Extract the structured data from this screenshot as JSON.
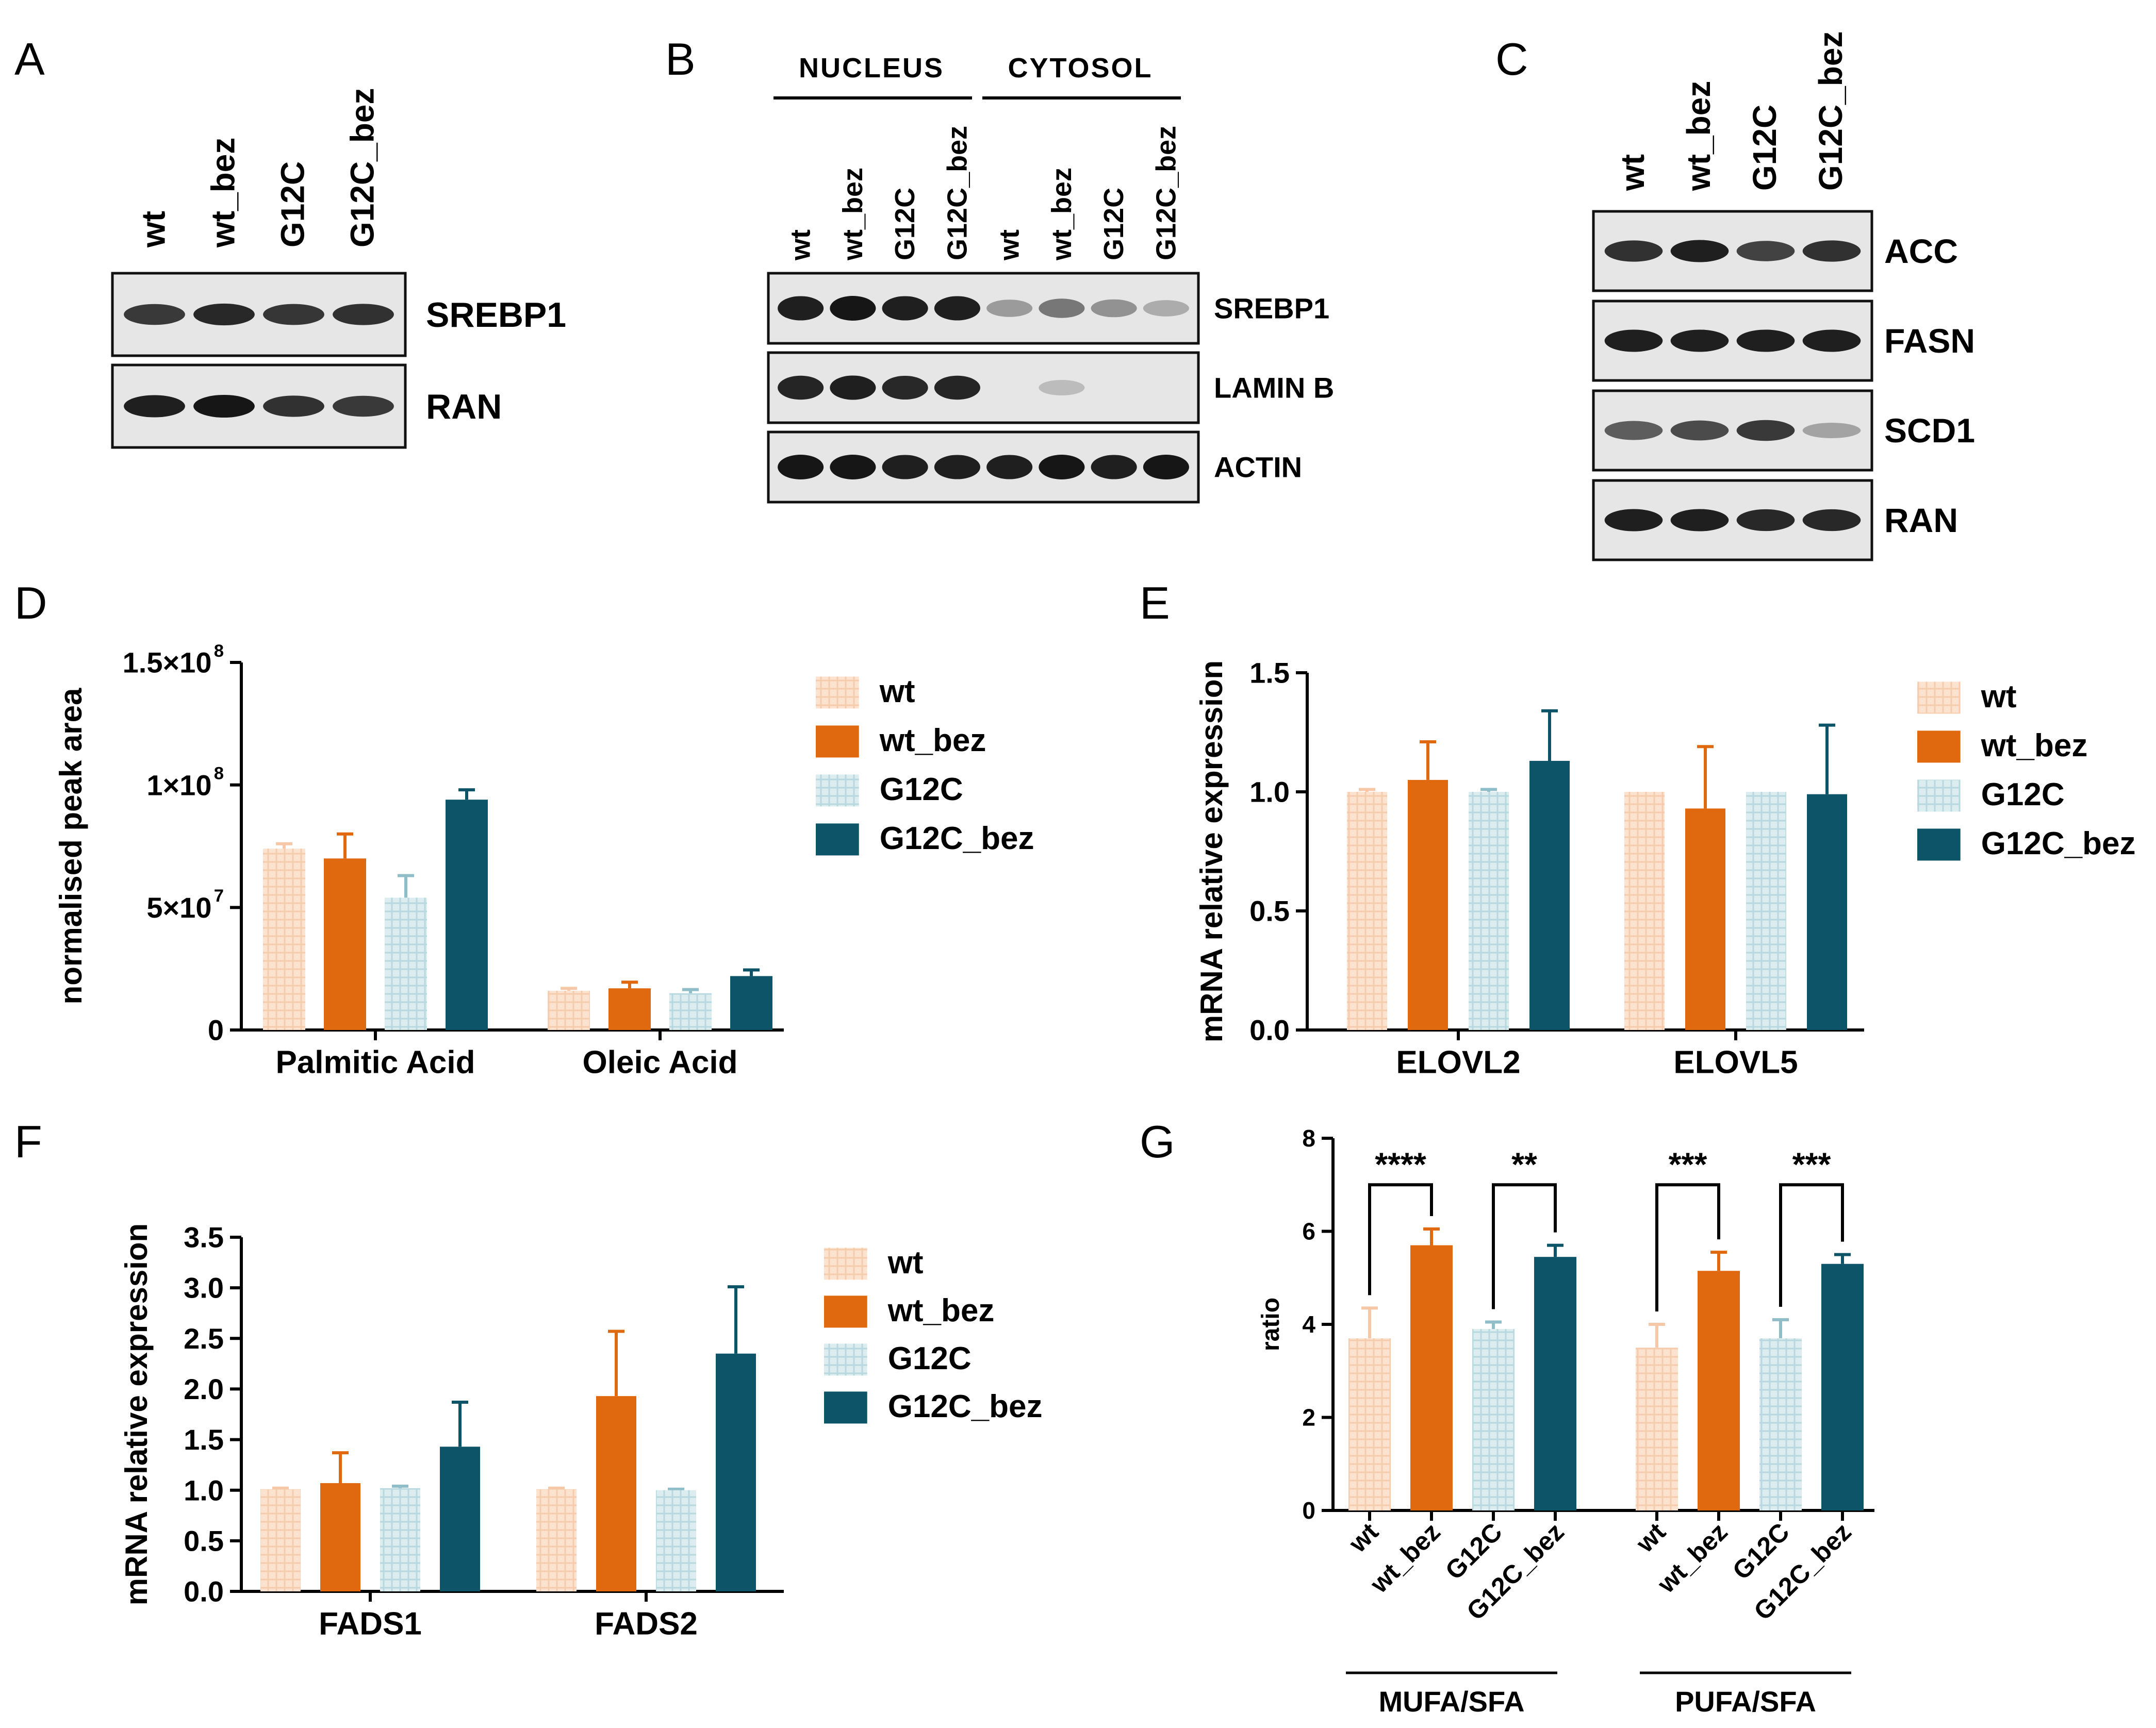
{
  "colors": {
    "wt": "#f6c8a8",
    "wt_bez": "#e0680f",
    "G12C": "#b4d6dd",
    "G12C_bez": "#0e5468",
    "blot_bg": "#e6e6e6",
    "band": "#161616"
  },
  "panels": {
    "A": {
      "letter": "A",
      "lanes": [
        "wt",
        "wt_bez",
        "G12C",
        "G12C_bez"
      ],
      "blots": [
        {
          "label": "SREBP1",
          "intensities": [
            0.8,
            0.9,
            0.82,
            0.85
          ]
        },
        {
          "label": "RAN",
          "intensities": [
            0.95,
            1.0,
            0.85,
            0.8
          ]
        }
      ]
    },
    "B": {
      "letter": "B",
      "groups": [
        "NUCLEUS",
        "CYTOSOL"
      ],
      "lanes": [
        "wt",
        "wt_bez",
        "G12C",
        "G12C_bez",
        "wt",
        "wt_bez",
        "G12C",
        "G12C_bez"
      ],
      "blots": [
        {
          "label": "SREBP1",
          "intensities": [
            0.95,
            1.0,
            0.95,
            0.95,
            0.25,
            0.45,
            0.3,
            0.15
          ]
        },
        {
          "label": "LAMIN B",
          "intensities": [
            0.92,
            0.95,
            0.9,
            0.92,
            0.0,
            0.06,
            0.0,
            0.0
          ]
        },
        {
          "label": "ACTIN",
          "intensities": [
            1.0,
            1.0,
            0.95,
            0.95,
            0.95,
            1.0,
            0.95,
            1.0
          ]
        }
      ]
    },
    "C": {
      "letter": "C",
      "lanes": [
        "wt",
        "wt_bez",
        "G12C",
        "G12C_bez"
      ],
      "blots": [
        {
          "label": "ACC",
          "intensities": [
            0.85,
            0.95,
            0.75,
            0.85
          ]
        },
        {
          "label": "FASN",
          "intensities": [
            0.95,
            0.95,
            0.95,
            0.95
          ]
        },
        {
          "label": "SCD1",
          "intensities": [
            0.6,
            0.7,
            0.8,
            0.2
          ]
        },
        {
          "label": "RAN",
          "intensities": [
            0.95,
            0.95,
            0.9,
            0.9
          ]
        }
      ]
    }
  },
  "legend": [
    "wt",
    "wt_bez",
    "G12C",
    "G12C_bez"
  ],
  "chart_data": [
    {
      "panel": "D",
      "type": "bar",
      "ylabel": "normalised peak area",
      "categories": [
        "Palmitic Acid",
        "Oleic Acid"
      ],
      "series": [
        {
          "name": "wt",
          "values": [
            74000000,
            16000000
          ],
          "errors": [
            2000000,
            1000000
          ]
        },
        {
          "name": "wt_bez",
          "values": [
            70000000,
            17000000
          ],
          "errors": [
            10000000,
            2500000
          ]
        },
        {
          "name": "G12C",
          "values": [
            54000000,
            15000000
          ],
          "errors": [
            9000000,
            1500000
          ]
        },
        {
          "name": "G12C_bez",
          "values": [
            94000000,
            22000000
          ],
          "errors": [
            4000000,
            2500000
          ]
        }
      ],
      "ylim": [
        0,
        150000000
      ],
      "yticks": [
        0,
        50000000,
        100000000,
        150000000
      ],
      "ytick_labels": [
        "0",
        "5×10",
        "1×10",
        "1.5×10"
      ],
      "ytick_exponents": [
        "",
        "7",
        "8",
        "8"
      ]
    },
    {
      "panel": "E",
      "type": "bar",
      "ylabel": "mRNA relative expression",
      "categories": [
        "ELOVL2",
        "ELOVL5"
      ],
      "series": [
        {
          "name": "wt",
          "values": [
            1.0,
            1.0
          ],
          "errors": [
            0.01,
            0.0
          ]
        },
        {
          "name": "wt_bez",
          "values": [
            1.05,
            0.93
          ],
          "errors": [
            0.16,
            0.26
          ]
        },
        {
          "name": "G12C",
          "values": [
            1.0,
            1.0
          ],
          "errors": [
            0.01,
            0.0
          ]
        },
        {
          "name": "G12C_bez",
          "values": [
            1.13,
            0.99
          ],
          "errors": [
            0.21,
            0.29
          ]
        }
      ],
      "ylim": [
        0,
        1.5
      ],
      "yticks": [
        0,
        0.5,
        1.0,
        1.5
      ],
      "ytick_labels": [
        "0.0",
        "0.5",
        "1.0",
        "1.5"
      ]
    },
    {
      "panel": "F",
      "type": "bar",
      "ylabel": "mRNA relative expression",
      "categories": [
        "FADS1",
        "FADS2"
      ],
      "series": [
        {
          "name": "wt",
          "values": [
            1.01,
            1.01
          ],
          "errors": [
            0.01,
            0.01
          ]
        },
        {
          "name": "wt_bez",
          "values": [
            1.07,
            1.93
          ],
          "errors": [
            0.3,
            0.64
          ]
        },
        {
          "name": "G12C",
          "values": [
            1.02,
            1.0
          ],
          "errors": [
            0.02,
            0.01
          ]
        },
        {
          "name": "G12C_bez",
          "values": [
            1.43,
            2.35
          ],
          "errors": [
            0.44,
            0.66
          ]
        }
      ],
      "ylim": [
        0,
        3.5
      ],
      "yticks": [
        0,
        0.5,
        1.0,
        1.5,
        2.0,
        2.5,
        3.0,
        3.5
      ],
      "ytick_labels": [
        "0.0",
        "0.5",
        "1.0",
        "1.5",
        "2.0",
        "2.5",
        "3.0",
        "3.5"
      ]
    },
    {
      "panel": "G",
      "type": "bar",
      "ylabel": "ratio",
      "categories": [
        "MUFA/SFA",
        "PUFA/SFA"
      ],
      "bar_labels": [
        "wt",
        "wt_bez",
        "G12C",
        "G12C_bez"
      ],
      "series": [
        {
          "name": "wt",
          "values": [
            3.7,
            3.5
          ],
          "errors": [
            0.65,
            0.5
          ]
        },
        {
          "name": "wt_bez",
          "values": [
            5.7,
            5.15
          ],
          "errors": [
            0.35,
            0.4
          ]
        },
        {
          "name": "G12C",
          "values": [
            3.9,
            3.7
          ],
          "errors": [
            0.15,
            0.4
          ]
        },
        {
          "name": "G12C_bez",
          "values": [
            5.45,
            5.3
          ],
          "errors": [
            0.25,
            0.2
          ]
        }
      ],
      "significance": [
        "****",
        "**",
        "***",
        "***"
      ],
      "ylim": [
        0,
        8
      ],
      "yticks": [
        0,
        2,
        4,
        6,
        8
      ],
      "ytick_labels": [
        "0",
        "2",
        "4",
        "6",
        "8"
      ]
    }
  ]
}
